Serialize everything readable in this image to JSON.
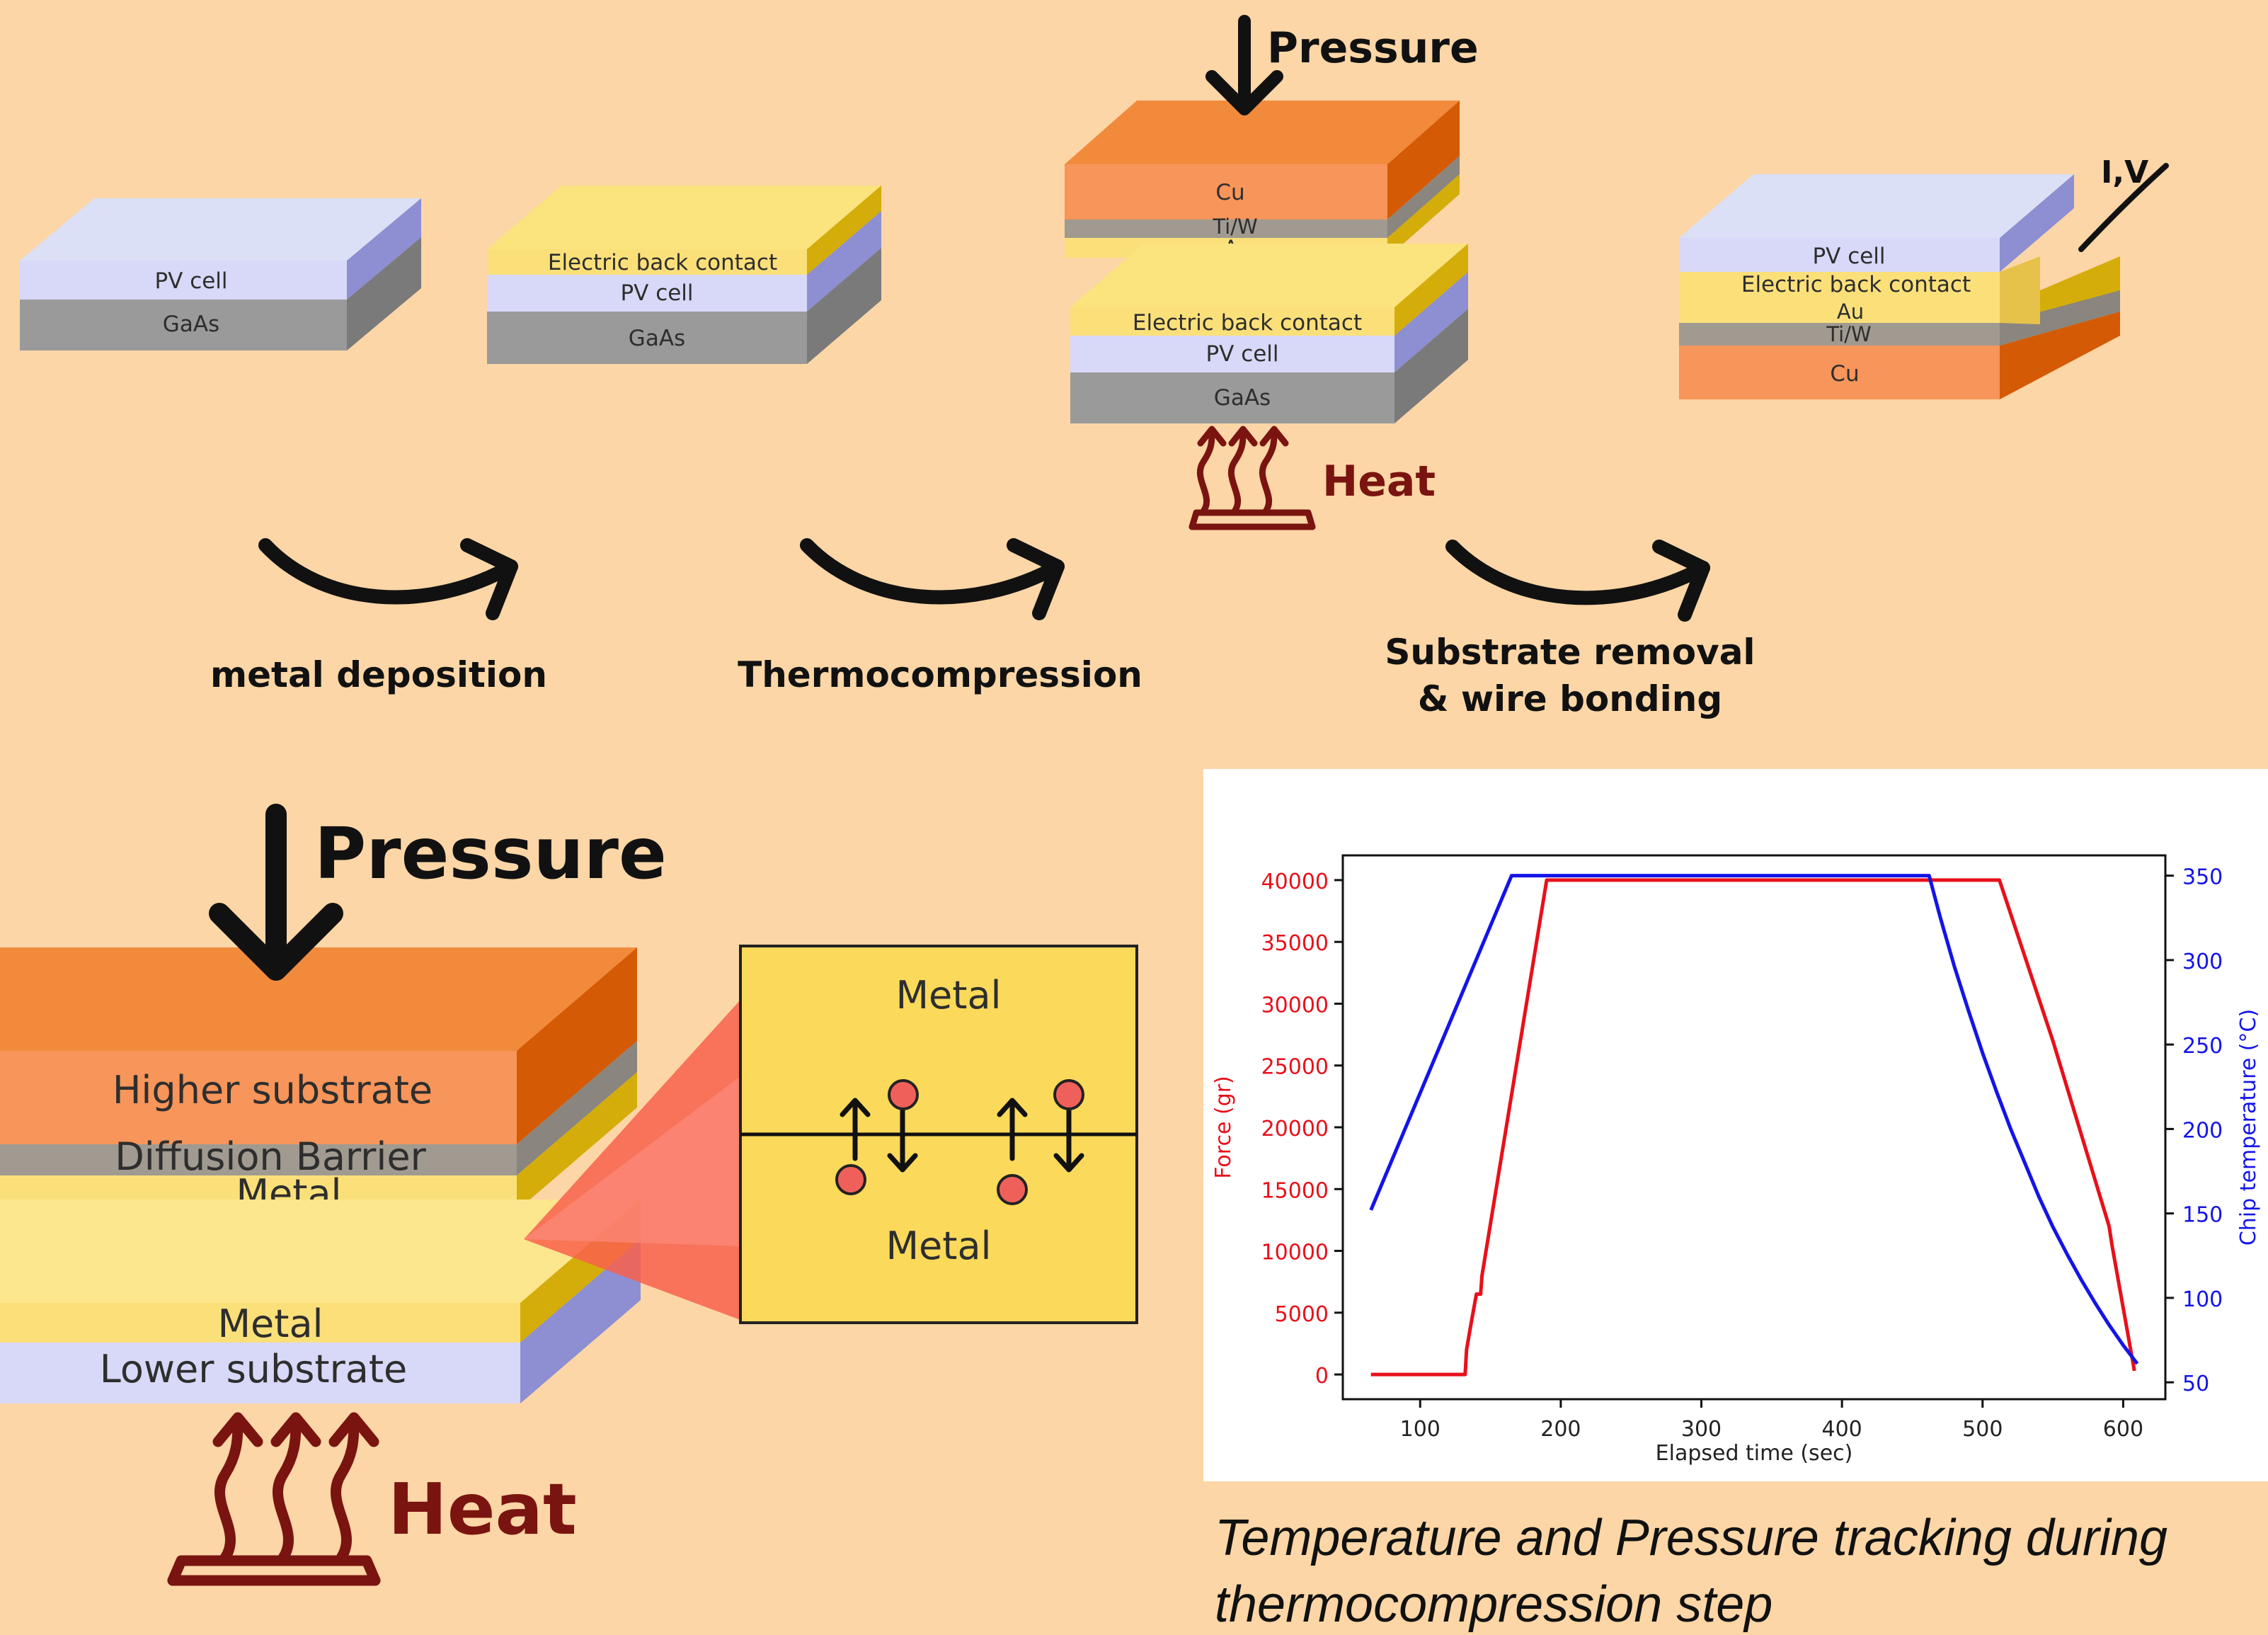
{
  "labels": {
    "pv_cell": "PV cell",
    "gaas": "GaAs",
    "electric_back_contact": "Electric back contact",
    "cu": "Cu",
    "tiw": "Ti/W",
    "au": "Au",
    "iv": "I,V",
    "pressure": "Pressure",
    "heat": "Heat",
    "metal": "Metal",
    "higher_substrate": "Higher substrate",
    "diffusion_barrier": "Diffusion Barrier",
    "lower_substrate": "Lower substrate"
  },
  "steps": {
    "metal_deposition": "metal deposition",
    "thermocompression": "Thermocompression",
    "substrate_removal_1": "Substrate removal",
    "substrate_removal_2": "& wire bonding"
  },
  "caption": {
    "line1": "Temperature and Pressure tracking during",
    "line2": "thermocompression step"
  },
  "colors": {
    "background": "#fcd6a6",
    "force": "#e8101a",
    "temperature": "#1414e8",
    "copper": "#f0883a",
    "gold": "#fbe07a",
    "pv": "#d8d8f8",
    "gaas": "#9a9a9a"
  },
  "chart_data": {
    "type": "line",
    "xlabel": "Elapsed time (sec)",
    "ylabel": "Force (gr)",
    "y2label": "Chip temperature (°C)",
    "xlim": [
      45,
      630
    ],
    "ylim": [
      -2000,
      42000
    ],
    "y2lim": [
      40,
      362
    ],
    "xticks": [
      100,
      200,
      300,
      400,
      500,
      600
    ],
    "yticks": [
      0,
      5000,
      10000,
      15000,
      20000,
      25000,
      30000,
      35000,
      40000
    ],
    "y2ticks": [
      50,
      100,
      150,
      200,
      250,
      300,
      350
    ],
    "series": [
      {
        "axis": "left",
        "color": "#e8101a",
        "x": [
          65,
          132,
          133,
          136,
          140,
          143,
          144,
          190,
          512,
          550,
          590,
          592,
          608
        ],
        "y": [
          0,
          0,
          2000,
          4000,
          6500,
          6500,
          8000,
          40000,
          40000,
          27000,
          12000,
          10500,
          300
        ]
      },
      {
        "axis": "right",
        "color": "#1414e8",
        "x": [
          65,
          165,
          462,
          470,
          480,
          490,
          500,
          510,
          520,
          530,
          540,
          550,
          560,
          570,
          580,
          590,
          600,
          610
        ],
        "y": [
          152,
          350,
          350,
          325,
          296,
          270,
          245,
          222,
          200,
          180,
          160,
          142,
          126,
          111,
          97,
          84,
          72,
          61
        ]
      }
    ]
  }
}
